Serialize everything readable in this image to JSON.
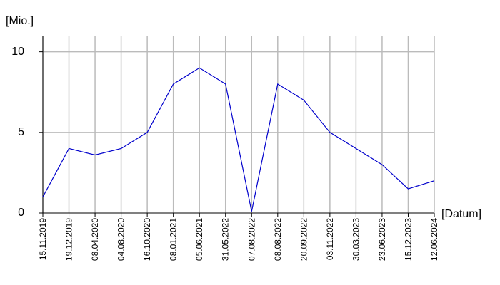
{
  "chart_data": {
    "type": "line",
    "y_label": "[Mio.]",
    "x_label": "[Datum]",
    "categories": [
      "15.11.2019",
      "19.12.2019",
      "08.04.2020",
      "04.08.2020",
      "16.10.2020",
      "08.01.2021",
      "05.06.2021",
      "31.05.2022",
      "07.08.2022",
      "08.08.2022",
      "20.09.2022",
      "03.11.2022",
      "30.03.2023",
      "23.06.2023",
      "15.12.2023",
      "12.06.2024"
    ],
    "series": [
      {
        "name": "Mio.",
        "color": "#0000cc",
        "values": [
          1,
          4,
          3.6,
          4,
          5,
          8,
          9,
          8,
          0.1,
          8,
          7,
          5,
          4,
          3,
          1.5,
          2
        ]
      }
    ],
    "ylim": [
      0,
      11
    ],
    "yticks": [
      0,
      5,
      10
    ],
    "grid": true
  }
}
